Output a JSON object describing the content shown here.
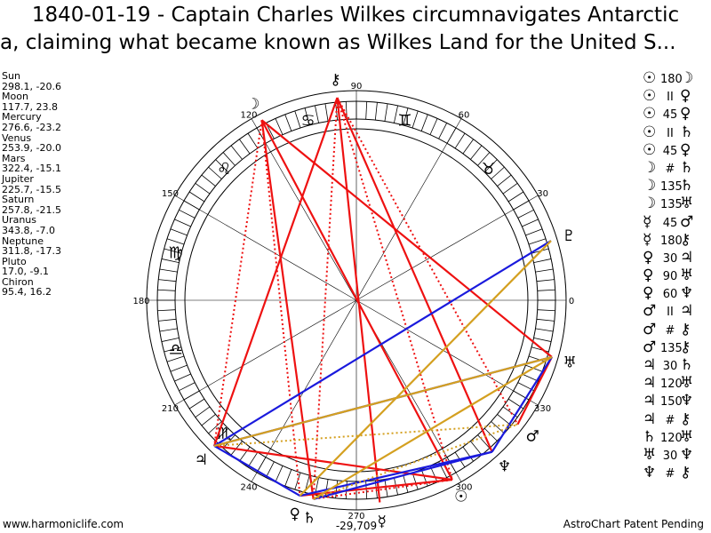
{
  "title": {
    "line1": "1840-01-19 - Captain Charles Wilkes circumnavigates Antarctic",
    "line2": "a, claiming what became known as Wilkes Land for the United S..."
  },
  "planets": [
    {
      "name": "Sun",
      "coords": "298.1, -20.6"
    },
    {
      "name": "Moon",
      "coords": "117.7, 23.8"
    },
    {
      "name": "Mercury",
      "coords": "276.6, -23.2"
    },
    {
      "name": "Venus",
      "coords": "253.9, -20.0"
    },
    {
      "name": "Mars",
      "coords": "322.4, -15.1"
    },
    {
      "name": "Jupiter",
      "coords": "225.7, -15.5"
    },
    {
      "name": "Saturn",
      "coords": "257.8, -21.5"
    },
    {
      "name": "Uranus",
      "coords": "343.8, -7.0"
    },
    {
      "name": "Neptune",
      "coords": "311.8, -17.3"
    },
    {
      "name": "Pluto",
      "coords": "17.0, -9.1"
    },
    {
      "name": "Chiron",
      "coords": "95.4, 16.2"
    }
  ],
  "aspects": [
    {
      "p1": "☉",
      "orb": "180",
      "p2": "☽"
    },
    {
      "p1": "☉",
      "orb": "II",
      "p2": "♀"
    },
    {
      "p1": "☉",
      "orb": "45",
      "p2": "♀"
    },
    {
      "p1": "☉",
      "orb": "II",
      "p2": "♄"
    },
    {
      "p1": "☉",
      "orb": "45",
      "p2": "♀"
    },
    {
      "p1": "☽",
      "orb": "#",
      "p2": "♄"
    },
    {
      "p1": "☽",
      "orb": "135",
      "p2": "♄"
    },
    {
      "p1": "☽",
      "orb": "135",
      "p2": "♅"
    },
    {
      "p1": "☿",
      "orb": "45",
      "p2": "♂"
    },
    {
      "p1": "☿",
      "orb": "180",
      "p2": "⚷"
    },
    {
      "p1": "♀",
      "orb": "30",
      "p2": "♃"
    },
    {
      "p1": "♀",
      "orb": "90",
      "p2": "♅"
    },
    {
      "p1": "♀",
      "orb": "60",
      "p2": "♆"
    },
    {
      "p1": "♂",
      "orb": "II",
      "p2": "♃"
    },
    {
      "p1": "♂",
      "orb": "#",
      "p2": "⚷"
    },
    {
      "p1": "♂",
      "orb": "135",
      "p2": "⚷"
    },
    {
      "p1": "♃",
      "orb": "30",
      "p2": "♄"
    },
    {
      "p1": "♃",
      "orb": "120",
      "p2": "♅"
    },
    {
      "p1": "♃",
      "orb": "150",
      "p2": "♆"
    },
    {
      "p1": "♃",
      "orb": "#",
      "p2": "⚷"
    },
    {
      "p1": "♄",
      "orb": "120",
      "p2": "♅"
    },
    {
      "p1": "♅",
      "orb": "30",
      "p2": "♆"
    },
    {
      "p1": "♆",
      "orb": "#",
      "p2": "⚷"
    }
  ],
  "footer": {
    "left": "www.harmoniclife.com",
    "center": "-29,709",
    "right": "AstroChart Patent Pending"
  },
  "chart_data": {
    "type": "diagram",
    "degree_labels": [
      "0",
      "30",
      "60",
      "90",
      "120",
      "150",
      "180",
      "210",
      "240",
      "270",
      "300",
      "330"
    ],
    "signs": [
      {
        "glyph": "♉",
        "lon": 45
      },
      {
        "glyph": "♊",
        "lon": 75
      },
      {
        "glyph": "♋",
        "lon": 105
      },
      {
        "glyph": "♌",
        "lon": 135
      },
      {
        "glyph": "♍",
        "lon": 165
      },
      {
        "glyph": "♎",
        "lon": 195
      },
      {
        "glyph": "♏",
        "lon": 225
      }
    ],
    "bodies": [
      {
        "glyph": "☉",
        "lon": 298.1
      },
      {
        "glyph": "☽",
        "lon": 117.7
      },
      {
        "glyph": "☿",
        "lon": 276.6
      },
      {
        "glyph": "♀",
        "lon": 253.9
      },
      {
        "glyph": "♂",
        "lon": 322.4
      },
      {
        "glyph": "♃",
        "lon": 225.7
      },
      {
        "glyph": "♄",
        "lon": 257.8
      },
      {
        "glyph": "♅",
        "lon": 343.8
      },
      {
        "glyph": "♆",
        "lon": 311.8
      },
      {
        "glyph": "♇",
        "lon": 17.0
      },
      {
        "glyph": "⚷",
        "lon": 95.4
      }
    ],
    "aspect_lines": [
      {
        "a": "Sun",
        "b": "Moon",
        "color": "#ee1111",
        "style": "solid"
      },
      {
        "a": "Moon",
        "b": "Saturn",
        "color": "#ee1111",
        "style": "solid"
      },
      {
        "a": "Moon",
        "b": "Uranus",
        "color": "#ee1111",
        "style": "solid"
      },
      {
        "a": "Moon",
        "b": "Venus",
        "color": "#ee1111",
        "style": "dotted"
      },
      {
        "a": "Chiron",
        "b": "Mercury",
        "color": "#ee1111",
        "style": "solid"
      },
      {
        "a": "Chiron",
        "b": "Saturn",
        "color": "#ee1111",
        "style": "dotted"
      },
      {
        "a": "Chiron",
        "b": "Sun",
        "color": "#ee1111",
        "style": "dotted"
      },
      {
        "a": "Chiron",
        "b": "Jupiter",
        "color": "#ee1111",
        "style": "solid"
      },
      {
        "a": "Chiron",
        "b": "Neptune",
        "color": "#ee1111",
        "style": "solid"
      },
      {
        "a": "Chiron",
        "b": "Mars",
        "color": "#ee1111",
        "style": "dotted"
      },
      {
        "a": "Moon",
        "b": "Jupiter",
        "color": "#ee1111",
        "style": "dotted"
      },
      {
        "a": "Sun",
        "b": "Venus",
        "color": "#ee1111",
        "style": "solid"
      },
      {
        "a": "Sun",
        "b": "Saturn",
        "color": "#ee1111",
        "style": "dotted"
      },
      {
        "a": "Mars",
        "b": "Uranus",
        "color": "#ee1111",
        "style": "solid"
      },
      {
        "a": "Jupiter",
        "b": "Sun",
        "color": "#ee1111",
        "style": "solid"
      },
      {
        "a": "Jupiter",
        "b": "Uranus",
        "color": "#1a1add",
        "style": "solid"
      },
      {
        "a": "Jupiter",
        "b": "Pluto",
        "color": "#1a1add",
        "style": "solid"
      },
      {
        "a": "Saturn",
        "b": "Neptune",
        "color": "#1a1add",
        "style": "solid"
      },
      {
        "a": "Venus",
        "b": "Jupiter",
        "color": "#1a1add",
        "style": "solid"
      },
      {
        "a": "Neptune",
        "b": "Uranus",
        "color": "#1a1add",
        "style": "solid"
      },
      {
        "a": "Venus",
        "b": "Neptune",
        "color": "#1a1add",
        "style": "solid"
      },
      {
        "a": "Venus",
        "b": "Pluto",
        "color": "#d4a020",
        "style": "solid"
      },
      {
        "a": "Jupiter",
        "b": "Uranus",
        "color": "#d4a020",
        "style": "solid"
      },
      {
        "a": "Jupiter",
        "b": "Mars",
        "color": "#d4a020",
        "style": "dotted"
      },
      {
        "a": "Saturn",
        "b": "Uranus",
        "color": "#d4a020",
        "style": "solid"
      },
      {
        "a": "Saturn",
        "b": "Mars",
        "color": "#d4a020",
        "style": "dotted"
      }
    ]
  },
  "colors": {
    "red": "#ee1111",
    "blue": "#1a1add",
    "gold": "#d4a020"
  }
}
